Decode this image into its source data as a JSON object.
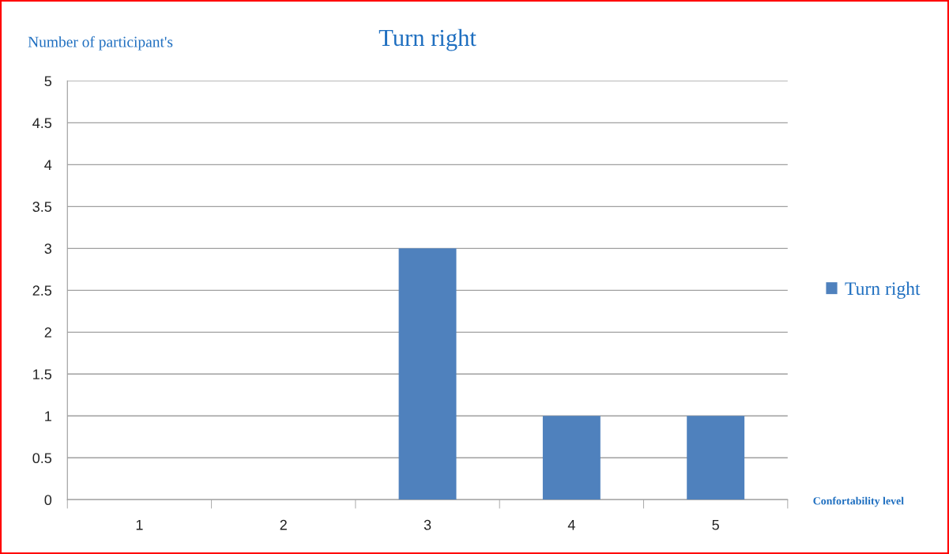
{
  "chart_data": {
    "type": "bar",
    "title": "Turn right",
    "ylabel": "Number of participant's",
    "xlabel": "Confortability level",
    "categories": [
      "1",
      "2",
      "3",
      "4",
      "5"
    ],
    "series": [
      {
        "name": "Turn right",
        "color": "#4f81bd",
        "values": [
          0,
          0,
          3,
          1,
          1
        ]
      }
    ],
    "ylim": [
      0,
      5
    ],
    "yticks": [
      0,
      0.5,
      1,
      1.5,
      2,
      2.5,
      3,
      3.5,
      4,
      4.5,
      5
    ],
    "grid": "y",
    "legend": "right"
  }
}
